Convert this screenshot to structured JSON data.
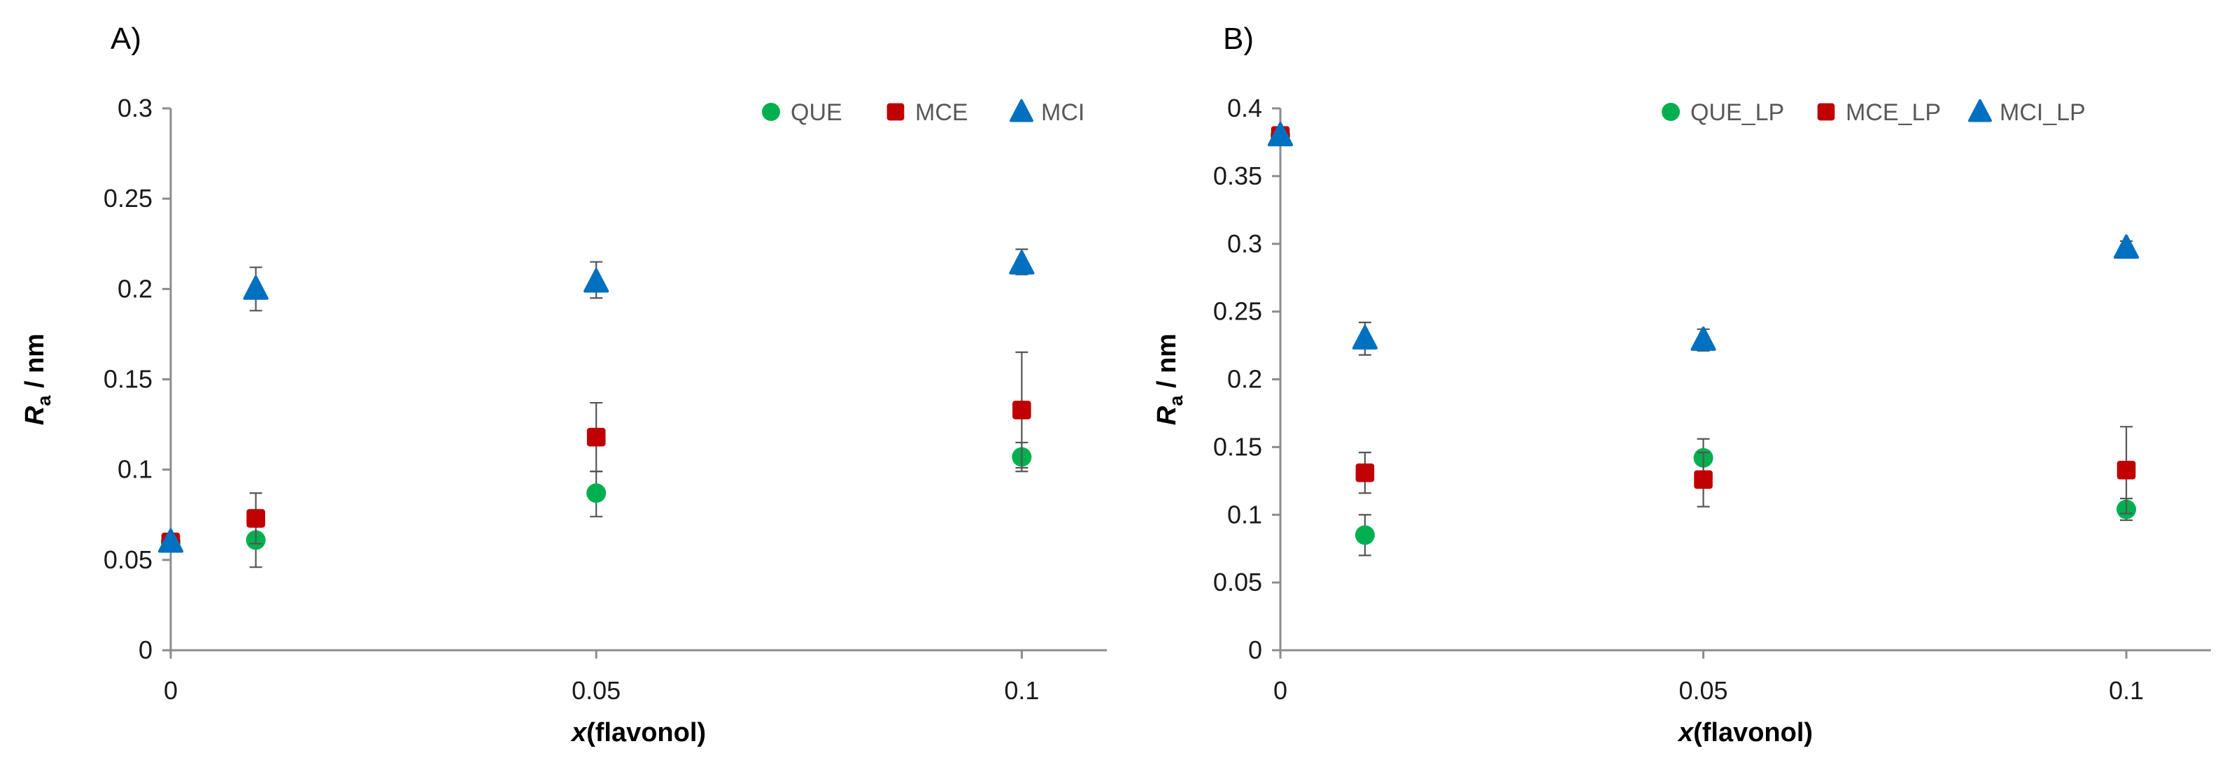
{
  "chart_data": [
    {
      "type": "scatter",
      "panel_label": "A)",
      "xlabel": {
        "italic": "x",
        "rest": "(flavonol)"
      },
      "ylabel": {
        "italic": "R",
        "sub": "a",
        "rest": " / nm"
      },
      "xlim": [
        0,
        0.11
      ],
      "ylim": [
        0,
        0.3
      ],
      "xticks": [
        0,
        0.05,
        0.1
      ],
      "xtick_labels": [
        "0",
        "0.05",
        "0.1"
      ],
      "yticks": [
        0,
        0.05,
        0.1,
        0.15,
        0.2,
        0.25,
        0.3
      ],
      "ytick_labels": [
        "0",
        "0.05",
        "0.1",
        "0.15",
        "0.2",
        "0.25",
        "0.3"
      ],
      "grid": false,
      "legend_position": "top-right",
      "series": [
        {
          "name": "QUE",
          "marker": "circle",
          "color": "#00b050",
          "x": [
            0,
            0.01,
            0.05,
            0.1
          ],
          "y": [
            0.06,
            0.061,
            0.087,
            0.107
          ],
          "err_up": [
            0,
            0,
            0.012,
            0.008
          ],
          "err_down": [
            0,
            0.015,
            0.013,
            0.008
          ]
        },
        {
          "name": "MCE",
          "marker": "square",
          "color": "#c00000",
          "x": [
            0,
            0.01,
            0.05,
            0.1
          ],
          "y": [
            0.06,
            0.073,
            0.118,
            0.133
          ],
          "err_up": [
            0,
            0.014,
            0.019,
            0.032
          ],
          "err_down": [
            0,
            0.014,
            0.019,
            0.032
          ]
        },
        {
          "name": "MCI",
          "marker": "triangle",
          "color": "#0070c0",
          "x": [
            0,
            0.01,
            0.05,
            0.1
          ],
          "y": [
            0.06,
            0.2,
            0.204,
            0.214
          ],
          "err_up": [
            0,
            0.012,
            0.011,
            0.008
          ],
          "err_down": [
            0,
            0.012,
            0.009,
            0.006
          ]
        }
      ]
    },
    {
      "type": "scatter",
      "panel_label": "B)",
      "xlabel": {
        "italic": "x",
        "rest": "(flavonol)"
      },
      "ylabel": {
        "italic": "R",
        "sub": "a",
        "rest": " / nm"
      },
      "xlim": [
        0,
        0.11
      ],
      "ylim": [
        0,
        0.4
      ],
      "xticks": [
        0,
        0.05,
        0.1
      ],
      "xtick_labels": [
        "0",
        "0.05",
        "0.1"
      ],
      "yticks": [
        0,
        0.05,
        0.1,
        0.15,
        0.2,
        0.25,
        0.3,
        0.35,
        0.4
      ],
      "ytick_labels": [
        "0",
        "0.05",
        "0.1",
        "0.15",
        "0.2",
        "0.25",
        "0.3",
        "0.35",
        "0.4"
      ],
      "grid": false,
      "legend_position": "top-right",
      "series": [
        {
          "name": "QUE_LP",
          "marker": "circle",
          "color": "#00b050",
          "x": [
            0,
            0.01,
            0.05,
            0.1
          ],
          "y": [
            0.38,
            0.085,
            0.142,
            0.104
          ],
          "err_up": [
            0,
            0.015,
            0.014,
            0.008
          ],
          "err_down": [
            0,
            0.015,
            0.014,
            0.008
          ]
        },
        {
          "name": "MCE_LP",
          "marker": "square",
          "color": "#c00000",
          "x": [
            0,
            0.01,
            0.05,
            0.1
          ],
          "y": [
            0.38,
            0.131,
            0.126,
            0.133
          ],
          "err_up": [
            0,
            0.015,
            0.02,
            0.032
          ],
          "err_down": [
            0,
            0.015,
            0.02,
            0.032
          ]
        },
        {
          "name": "MCI_LP",
          "marker": "triangle",
          "color": "#0070c0",
          "x": [
            0,
            0.01,
            0.05,
            0.1
          ],
          "y": [
            0.38,
            0.23,
            0.229,
            0.297
          ],
          "err_up": [
            0,
            0.012,
            0.008,
            0.005
          ],
          "err_down": [
            0,
            0.012,
            0.008,
            0.005
          ]
        }
      ]
    }
  ]
}
